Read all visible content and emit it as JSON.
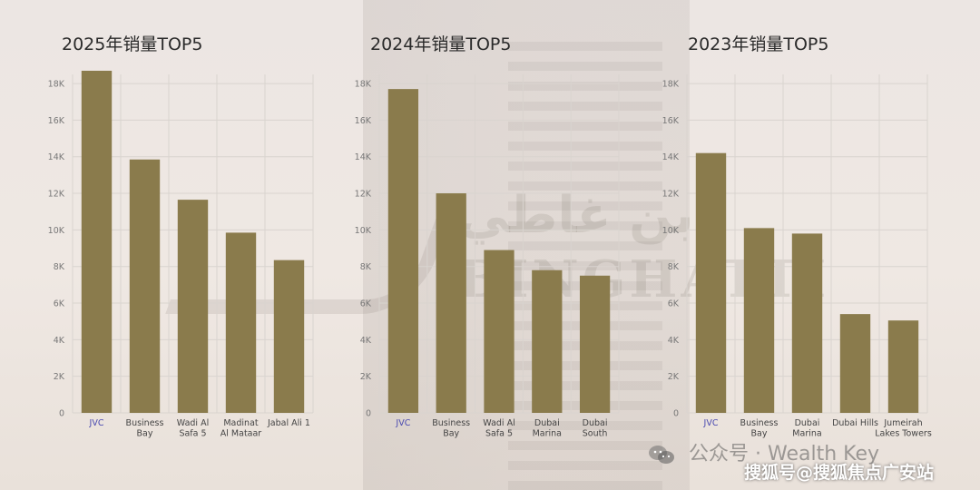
{
  "colors": {
    "bar": "#8a7b4c",
    "grid": "#d9d4cf",
    "axis_text": "#777777",
    "highlight_tick": "#4a4ab0"
  },
  "watermark": {
    "arabic": "بن غاطي",
    "latin": "BINGHATTI"
  },
  "footer": {
    "account_label": "公众号 · Wealth Key",
    "source_label": "搜狐号@搜狐焦点广安站"
  },
  "chart_data": [
    {
      "type": "bar",
      "title": "2025年销量TOP5",
      "categories": [
        "JVC",
        "Business Bay",
        "Wadi Al Safa 5",
        "Madinat Al Mataar",
        "Jabal Ali 1"
      ],
      "category_lines": [
        [
          "JVC"
        ],
        [
          "Business",
          "Bay"
        ],
        [
          "Wadi Al",
          "Safa 5"
        ],
        [
          "Madinat",
          "Al Mataar"
        ],
        [
          "Jabal Ali 1"
        ]
      ],
      "values": [
        18700,
        13850,
        11650,
        9850,
        8350
      ],
      "ylim": [
        0,
        18000
      ],
      "yticks": [
        "0",
        "2K",
        "4K",
        "6K",
        "8K",
        "10K",
        "12K",
        "14K",
        "16K",
        "18K"
      ],
      "xlabel": "",
      "ylabel": "",
      "grid": true
    },
    {
      "type": "bar",
      "title": "2024年销量TOP5",
      "categories": [
        "JVC",
        "Business Bay",
        "Wadi Al Safa 5",
        "Dubai Marina",
        "Dubai South"
      ],
      "category_lines": [
        [
          "JVC"
        ],
        [
          "Business",
          "Bay"
        ],
        [
          "Wadi Al",
          "Safa 5"
        ],
        [
          "Dubai",
          "Marina"
        ],
        [
          "Dubai",
          "South"
        ]
      ],
      "values": [
        17700,
        12000,
        8900,
        7800,
        7500
      ],
      "ylim": [
        0,
        18000
      ],
      "yticks": [
        "0",
        "2K",
        "4K",
        "6K",
        "8K",
        "10K",
        "12K",
        "14K",
        "16K",
        "18K"
      ],
      "xlabel": "",
      "ylabel": "",
      "grid": true
    },
    {
      "type": "bar",
      "title": "2023年销量TOP5",
      "categories": [
        "JVC",
        "Business Bay",
        "Dubai Marina",
        "Dubai Hills",
        "Jumeirah Lakes Towers"
      ],
      "category_lines": [
        [
          "JVC"
        ],
        [
          "Business",
          "Bay"
        ],
        [
          "Dubai",
          "Marina"
        ],
        [
          "Dubai Hills"
        ],
        [
          "Jumeirah",
          "Lakes Towers"
        ]
      ],
      "values": [
        14200,
        10100,
        9800,
        5400,
        5050
      ],
      "ylim": [
        0,
        18000
      ],
      "yticks": [
        "0",
        "2K",
        "4K",
        "6K",
        "8K",
        "10K",
        "12K",
        "14K",
        "16K",
        "18K"
      ],
      "xlabel": "",
      "ylabel": "",
      "grid": true
    }
  ]
}
